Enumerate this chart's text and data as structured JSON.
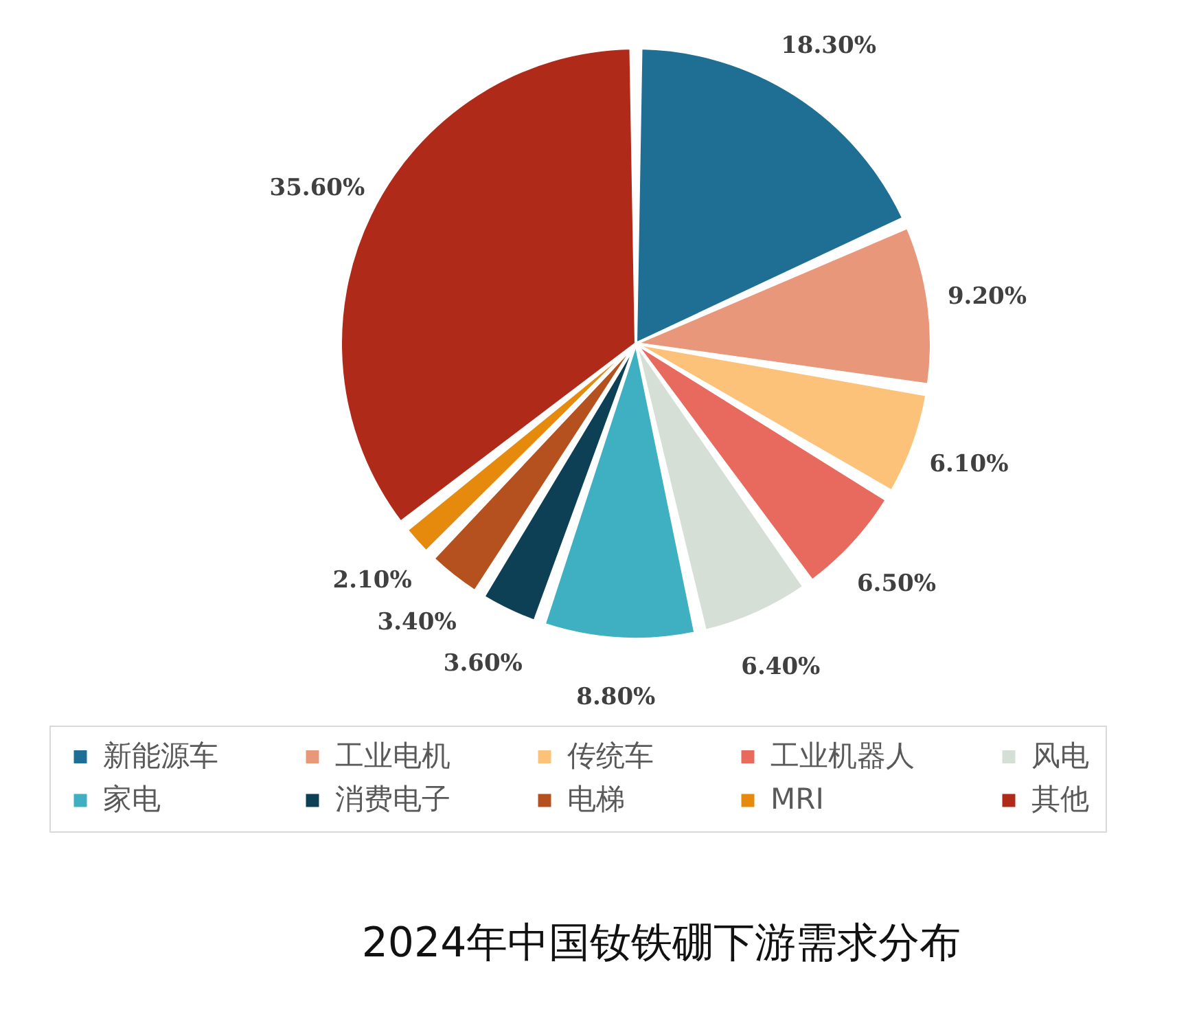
{
  "chart_data": {
    "type": "pie",
    "title": "2024年中国钕铁硼下游需求分布",
    "categories": [
      "新能源车",
      "工业电机",
      "传统车",
      "工业机器人",
      "风电",
      "家电",
      "消费电子",
      "电梯",
      "MRI",
      "其他"
    ],
    "values": [
      18.3,
      9.2,
      6.1,
      6.5,
      6.4,
      8.8,
      3.6,
      3.4,
      2.1,
      35.6
    ],
    "colors": [
      "#1f6e94",
      "#e8977a",
      "#fdc279",
      "#e8695d",
      "#d6dfd6",
      "#3fb0c2",
      "#0e4055",
      "#b5501f",
      "#e68a0e",
      "#b02a1a"
    ],
    "value_labels": [
      "18.30%",
      "9.20%",
      "6.10%",
      "6.50%",
      "6.40%",
      "8.80%",
      "3.60%",
      "3.40%",
      "2.10%",
      "35.60%"
    ],
    "legend": "bottom"
  }
}
